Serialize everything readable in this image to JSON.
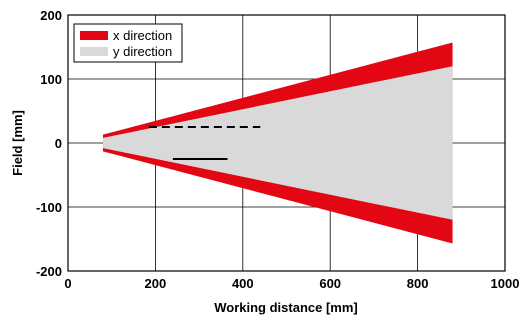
{
  "chart_data": {
    "type": "area",
    "xlabel": "Working distance [mm]",
    "ylabel": "Field [mm]",
    "xlim": [
      0,
      1000
    ],
    "ylim": [
      -200,
      200
    ],
    "x_ticks": [
      0,
      200,
      400,
      600,
      800,
      1000
    ],
    "y_ticks": [
      200,
      100,
      0,
      -100,
      -200
    ],
    "grid": true,
    "legend_position": "top-left",
    "series": [
      {
        "name": "x direction",
        "color": "#e30613",
        "x": [
          80,
          880
        ],
        "upper": [
          13,
          157
        ],
        "lower": [
          -13,
          -157
        ]
      },
      {
        "name": "y direction",
        "color": "#d9d9d9",
        "x": [
          80,
          880
        ],
        "upper": [
          8,
          120
        ],
        "lower": [
          -8,
          -120
        ]
      }
    ],
    "annotations": [
      {
        "style": "dashed",
        "color": "#000000",
        "x": [
          185,
          440
        ],
        "y": [
          25,
          25
        ]
      },
      {
        "style": "solid",
        "color": "#000000",
        "x": [
          240,
          365
        ],
        "y": [
          -25,
          -25
        ]
      }
    ]
  }
}
